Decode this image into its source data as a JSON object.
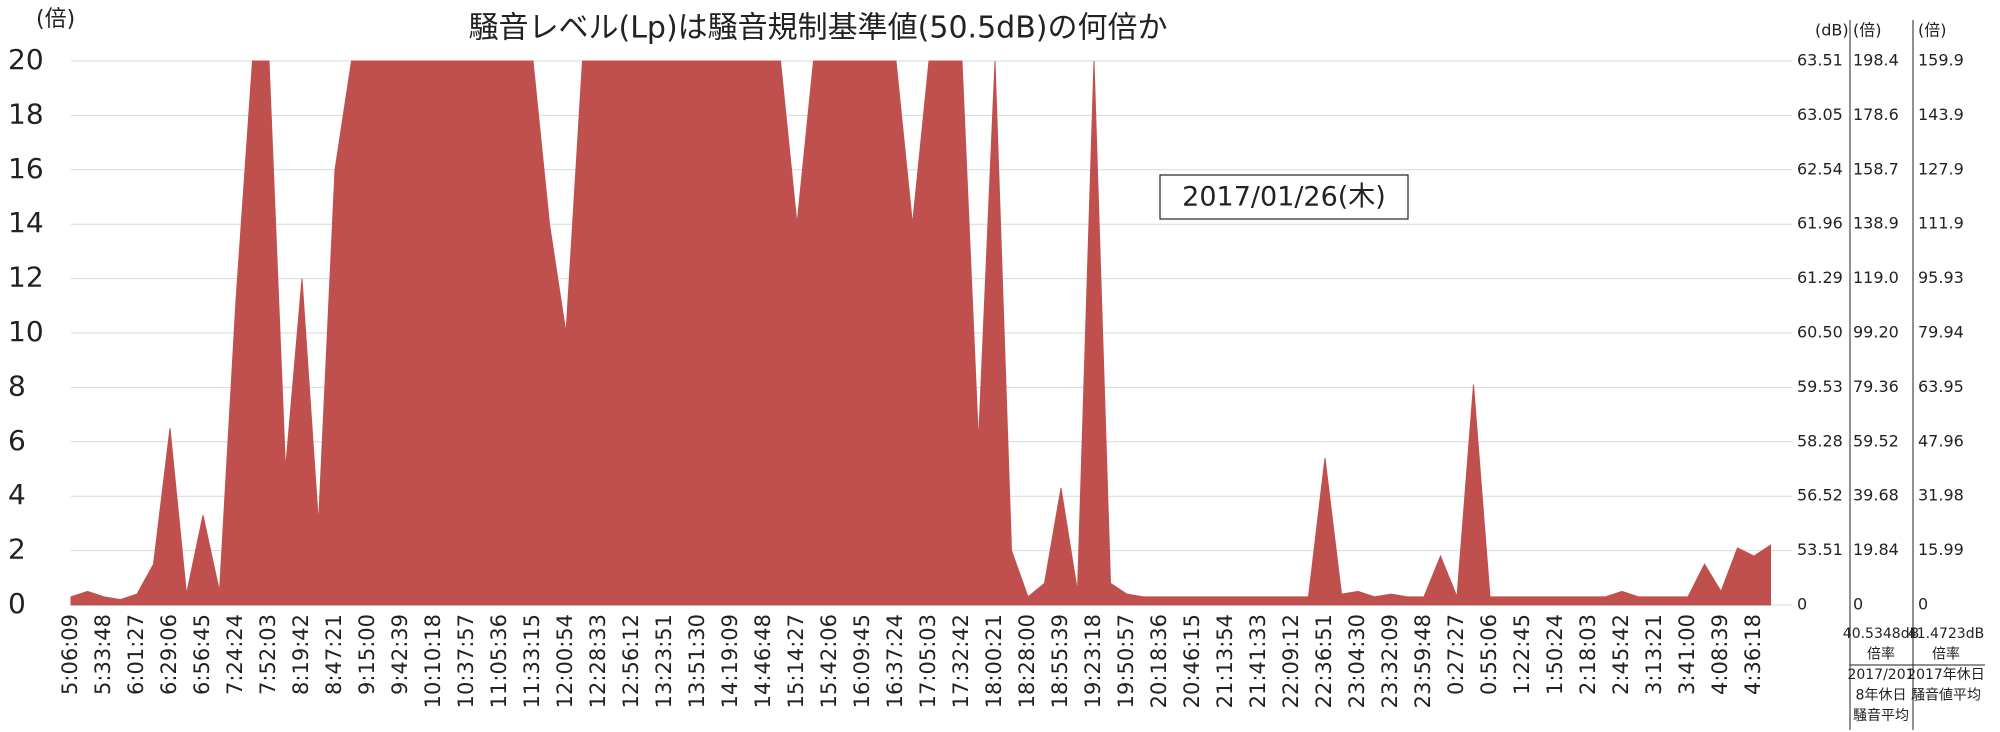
{
  "chart_data": {
    "type": "area",
    "title": "騒音レベル(Lp)は騒音規制基準値(50.5dB)の何倍か",
    "y_unit": "(倍)",
    "annotation": "2017/01/26(木)",
    "categories": [
      "5:06:09",
      null,
      "5:33:48",
      null,
      "6:01:27",
      null,
      "6:29:06",
      null,
      "6:56:45",
      null,
      "7:24:24",
      null,
      "7:52:03",
      null,
      "8:19:42",
      null,
      "8:47:21",
      null,
      "9:15:00",
      null,
      "9:42:39",
      null,
      "10:10:18",
      null,
      "10:37:57",
      null,
      "11:05:36",
      null,
      "11:33:15",
      null,
      "12:00:54",
      null,
      "12:28:33",
      null,
      "12:56:12",
      null,
      "13:23:51",
      null,
      "13:51:30",
      null,
      "14:19:09",
      null,
      "14:46:48",
      null,
      "15:14:27",
      null,
      "15:42:06",
      null,
      "16:09:45",
      null,
      "16:37:24",
      null,
      "17:05:03",
      null,
      "17:32:42",
      null,
      "18:00:21",
      null,
      "18:28:00",
      null,
      "18:55:39",
      null,
      "19:23:18",
      null,
      "19:50:57",
      null,
      "20:18:36",
      null,
      "20:46:15",
      null,
      "21:13:54",
      null,
      "21:41:33",
      null,
      "22:09:12",
      null,
      "22:36:51",
      null,
      "23:04:30",
      null,
      "23:32:09",
      null,
      "23:59:48",
      null,
      "0:27:27",
      null,
      "0:55:06",
      null,
      "1:22:45",
      null,
      "1:50:24",
      null,
      "2:18:03",
      null,
      "2:45:42",
      null,
      "3:13:21",
      null,
      "3:41:00",
      null,
      "4:08:39",
      null,
      "4:36:18",
      null
    ],
    "series": [
      {
        "color": "#c0504d",
        "values": [
          0.3,
          0.5,
          0.3,
          0.2,
          0.4,
          1.5,
          6.5,
          0.4,
          3.3,
          0.5,
          11.2,
          20,
          20,
          5,
          12,
          3,
          16,
          20,
          20,
          20,
          20,
          20,
          20,
          20,
          20,
          20,
          20,
          20,
          20,
          14,
          10,
          20,
          20,
          20,
          20,
          20,
          20,
          20,
          20,
          20,
          20,
          20,
          20,
          20,
          14,
          20,
          20,
          20,
          20,
          20,
          20,
          14,
          20,
          20,
          20,
          6,
          20,
          2,
          0.3,
          0.8,
          4.3,
          0.5,
          20,
          0.8,
          0.4,
          0.3,
          0.3,
          0.3,
          0.3,
          0.3,
          0.3,
          0.3,
          0.3,
          0.3,
          0.3,
          0.3,
          5.4,
          0.4,
          0.5,
          0.3,
          0.4,
          0.3,
          0.3,
          1.8,
          0.3,
          8.1,
          0.3,
          0.3,
          0.3,
          0.3,
          0.3,
          0.3,
          0.3,
          0.3,
          0.5,
          0.3,
          0.3,
          0.3,
          0.3,
          1.5,
          0.5,
          2.1,
          1.8,
          2.2
        ]
      }
    ],
    "ylim": [
      0,
      20
    ],
    "yticks": [
      0,
      2,
      4,
      6,
      8,
      10,
      12,
      14,
      16,
      18,
      20
    ],
    "grid": true,
    "right_axes": [
      {
        "unit": "(dB)",
        "ticks": [
          0,
          53.51,
          56.52,
          58.28,
          59.53,
          {
            "value": 60.5,
            "label": "60.50"
          },
          61.29,
          61.96,
          62.54,
          63.05,
          63.51
        ]
      },
      {
        "unit": "(倍)",
        "ticks": [
          0,
          19.84,
          39.68,
          59.52,
          79.36,
          {
            "value": 99.2,
            "label": "99.20"
          },
          {
            "value": 119,
            "label": "119.0"
          },
          138.9,
          158.7,
          178.6,
          198.4
        ],
        "notes": [
          "40.5348dB",
          "倍率",
          "2017/201",
          "8年休日",
          "騒音平均"
        ]
      },
      {
        "unit": "(倍)",
        "ticks": [
          0,
          15.99,
          31.98,
          47.96,
          63.95,
          79.94,
          95.93,
          111.9,
          127.9,
          143.9,
          159.9
        ],
        "notes": [
          "41.4723dB",
          "倍率",
          "2017年休日",
          "騒音値平均"
        ]
      }
    ]
  }
}
